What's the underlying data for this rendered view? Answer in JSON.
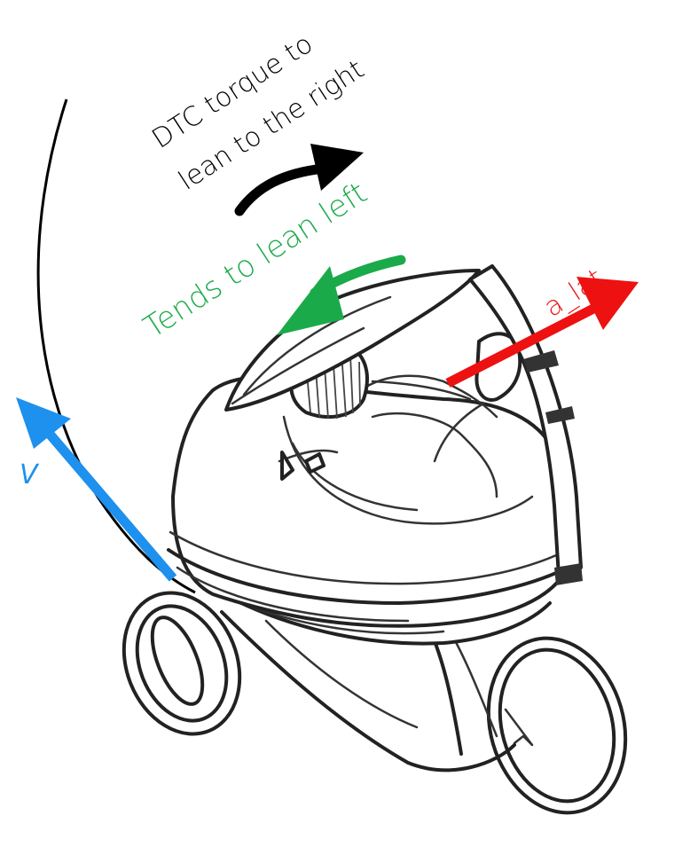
{
  "labels": {
    "dtc_line1": "DTC torque to",
    "dtc_line2": "lean to the right",
    "tends": "Tends to lean left",
    "a_lat": "a_lat",
    "v": "V"
  },
  "colors": {
    "dtc_arrow": "#000000",
    "tends_arrow": "#1aaa4a",
    "a_lat_arrow": "#ee1111",
    "v_arrow": "#1e90ee",
    "path_curve": "#000000",
    "sketch_ink": "#222222"
  },
  "figure": {
    "subject": "jogging-stroller-sketch",
    "path": "curved-trajectory-line"
  }
}
